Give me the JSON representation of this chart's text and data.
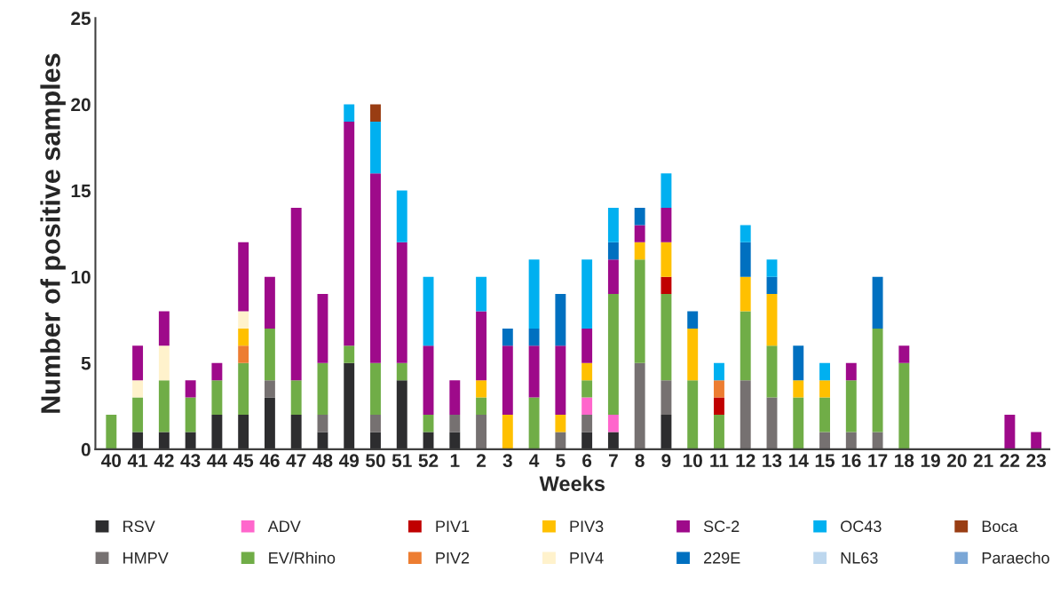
{
  "chart_data": {
    "type": "bar",
    "stacked": true,
    "xlabel": "Weeks",
    "ylabel": "Number of positive samples",
    "categories": [
      "40",
      "41",
      "42",
      "43",
      "44",
      "45",
      "46",
      "47",
      "48",
      "49",
      "50",
      "51",
      "52",
      "1",
      "2",
      "3",
      "4",
      "5",
      "6",
      "7",
      "8",
      "9",
      "10",
      "11",
      "12",
      "13",
      "14",
      "15",
      "16",
      "17",
      "18",
      "19",
      "20",
      "21",
      "22",
      "23"
    ],
    "series": [
      {
        "name": "RSV",
        "color": "#2d2d2f",
        "values": [
          0,
          1,
          1,
          1,
          2,
          2,
          3,
          2,
          1,
          5,
          1,
          4,
          1,
          1,
          0,
          0,
          0,
          0,
          1,
          1,
          0,
          2,
          0,
          0,
          0,
          0,
          0,
          0,
          0,
          0,
          0,
          0,
          0,
          0,
          0,
          0
        ]
      },
      {
        "name": "HMPV",
        "color": "#767171",
        "values": [
          0,
          0,
          0,
          0,
          0,
          0,
          1,
          0,
          1,
          0,
          1,
          0,
          0,
          1,
          2,
          0,
          0,
          1,
          1,
          0,
          5,
          2,
          0,
          0,
          4,
          3,
          0,
          1,
          1,
          1,
          0,
          0,
          0,
          0,
          0,
          0
        ]
      },
      {
        "name": "ADV",
        "color": "#ff66cc",
        "values": [
          0,
          0,
          0,
          0,
          0,
          0,
          0,
          0,
          0,
          0,
          0,
          0,
          0,
          0,
          0,
          0,
          0,
          0,
          1,
          1,
          0,
          0,
          0,
          0,
          0,
          0,
          0,
          0,
          0,
          0,
          0,
          0,
          0,
          0,
          0,
          0
        ]
      },
      {
        "name": "EV/Rhino",
        "color": "#70ad47",
        "values": [
          2,
          2,
          3,
          2,
          2,
          3,
          3,
          2,
          3,
          1,
          3,
          1,
          1,
          0,
          1,
          0,
          3,
          0,
          1,
          7,
          6,
          5,
          4,
          2,
          4,
          3,
          3,
          2,
          3,
          6,
          5,
          0,
          0,
          0,
          0,
          0
        ]
      },
      {
        "name": "PIV1",
        "color": "#c00000",
        "values": [
          0,
          0,
          0,
          0,
          0,
          0,
          0,
          0,
          0,
          0,
          0,
          0,
          0,
          0,
          0,
          0,
          0,
          0,
          0,
          0,
          0,
          1,
          0,
          1,
          0,
          0,
          0,
          0,
          0,
          0,
          0,
          0,
          0,
          0,
          0,
          0
        ]
      },
      {
        "name": "PIV2",
        "color": "#ed7d31",
        "values": [
          0,
          0,
          0,
          0,
          0,
          1,
          0,
          0,
          0,
          0,
          0,
          0,
          0,
          0,
          0,
          0,
          0,
          0,
          0,
          0,
          0,
          0,
          0,
          1,
          0,
          0,
          0,
          0,
          0,
          0,
          0,
          0,
          0,
          0,
          0,
          0
        ]
      },
      {
        "name": "PIV3",
        "color": "#ffc000",
        "values": [
          0,
          0,
          0,
          0,
          0,
          1,
          0,
          0,
          0,
          0,
          0,
          0,
          0,
          0,
          1,
          2,
          0,
          1,
          1,
          0,
          1,
          2,
          3,
          0,
          2,
          3,
          1,
          1,
          0,
          0,
          0,
          0,
          0,
          0,
          0,
          0
        ]
      },
      {
        "name": "PIV4",
        "color": "#fff2cc",
        "values": [
          0,
          1,
          2,
          0,
          0,
          1,
          0,
          0,
          0,
          0,
          0,
          0,
          0,
          0,
          0,
          0,
          0,
          0,
          0,
          0,
          0,
          0,
          0,
          0,
          0,
          0,
          0,
          0,
          0,
          0,
          0,
          0,
          0,
          0,
          0,
          0
        ]
      },
      {
        "name": "SC-2",
        "color": "#9e0a8a",
        "values": [
          0,
          2,
          2,
          1,
          1,
          4,
          3,
          10,
          4,
          13,
          11,
          7,
          4,
          2,
          4,
          4,
          3,
          4,
          2,
          2,
          1,
          2,
          0,
          0,
          0,
          0,
          0,
          0,
          1,
          0,
          1,
          0,
          0,
          0,
          2,
          1
        ]
      },
      {
        "name": "229E",
        "color": "#0070c0",
        "values": [
          0,
          0,
          0,
          0,
          0,
          0,
          0,
          0,
          0,
          0,
          0,
          0,
          0,
          0,
          0,
          1,
          1,
          3,
          0,
          1,
          1,
          0,
          1,
          0,
          2,
          1,
          2,
          0,
          0,
          3,
          0,
          0,
          0,
          0,
          0,
          0
        ]
      },
      {
        "name": "OC43",
        "color": "#00b0f0",
        "values": [
          0,
          0,
          0,
          0,
          0,
          0,
          0,
          0,
          0,
          1,
          3,
          3,
          4,
          0,
          2,
          0,
          4,
          0,
          4,
          2,
          0,
          2,
          0,
          1,
          1,
          1,
          0,
          1,
          0,
          0,
          0,
          0,
          0,
          0,
          0,
          0
        ]
      },
      {
        "name": "NL63",
        "color": "#bdd7ee",
        "values": [
          0,
          0,
          0,
          0,
          0,
          0,
          0,
          0,
          0,
          0,
          0,
          0,
          0,
          0,
          0,
          0,
          0,
          0,
          0,
          0,
          0,
          0,
          0,
          0,
          0,
          0,
          0,
          0,
          0,
          0,
          0,
          0,
          0,
          0,
          0,
          0
        ]
      },
      {
        "name": "Boca",
        "color": "#993d13",
        "values": [
          0,
          0,
          0,
          0,
          0,
          0,
          0,
          0,
          0,
          0,
          1,
          0,
          0,
          0,
          0,
          0,
          0,
          0,
          0,
          0,
          0,
          0,
          0,
          0,
          0,
          0,
          0,
          0,
          0,
          0,
          0,
          0,
          0,
          0,
          0,
          0
        ]
      },
      {
        "name": "Paraecho",
        "color": "#7ba7d6",
        "values": [
          0,
          0,
          0,
          0,
          0,
          0,
          0,
          0,
          0,
          0,
          0,
          0,
          0,
          0,
          0,
          0,
          0,
          0,
          0,
          0,
          0,
          0,
          0,
          0,
          0,
          0,
          0,
          0,
          0,
          0,
          0,
          0,
          0,
          0,
          0,
          0
        ]
      }
    ],
    "ylim": [
      0,
      25
    ],
    "yticks": [
      0,
      5,
      10,
      15,
      20,
      25
    ],
    "grid": false,
    "legend": "bottom"
  }
}
